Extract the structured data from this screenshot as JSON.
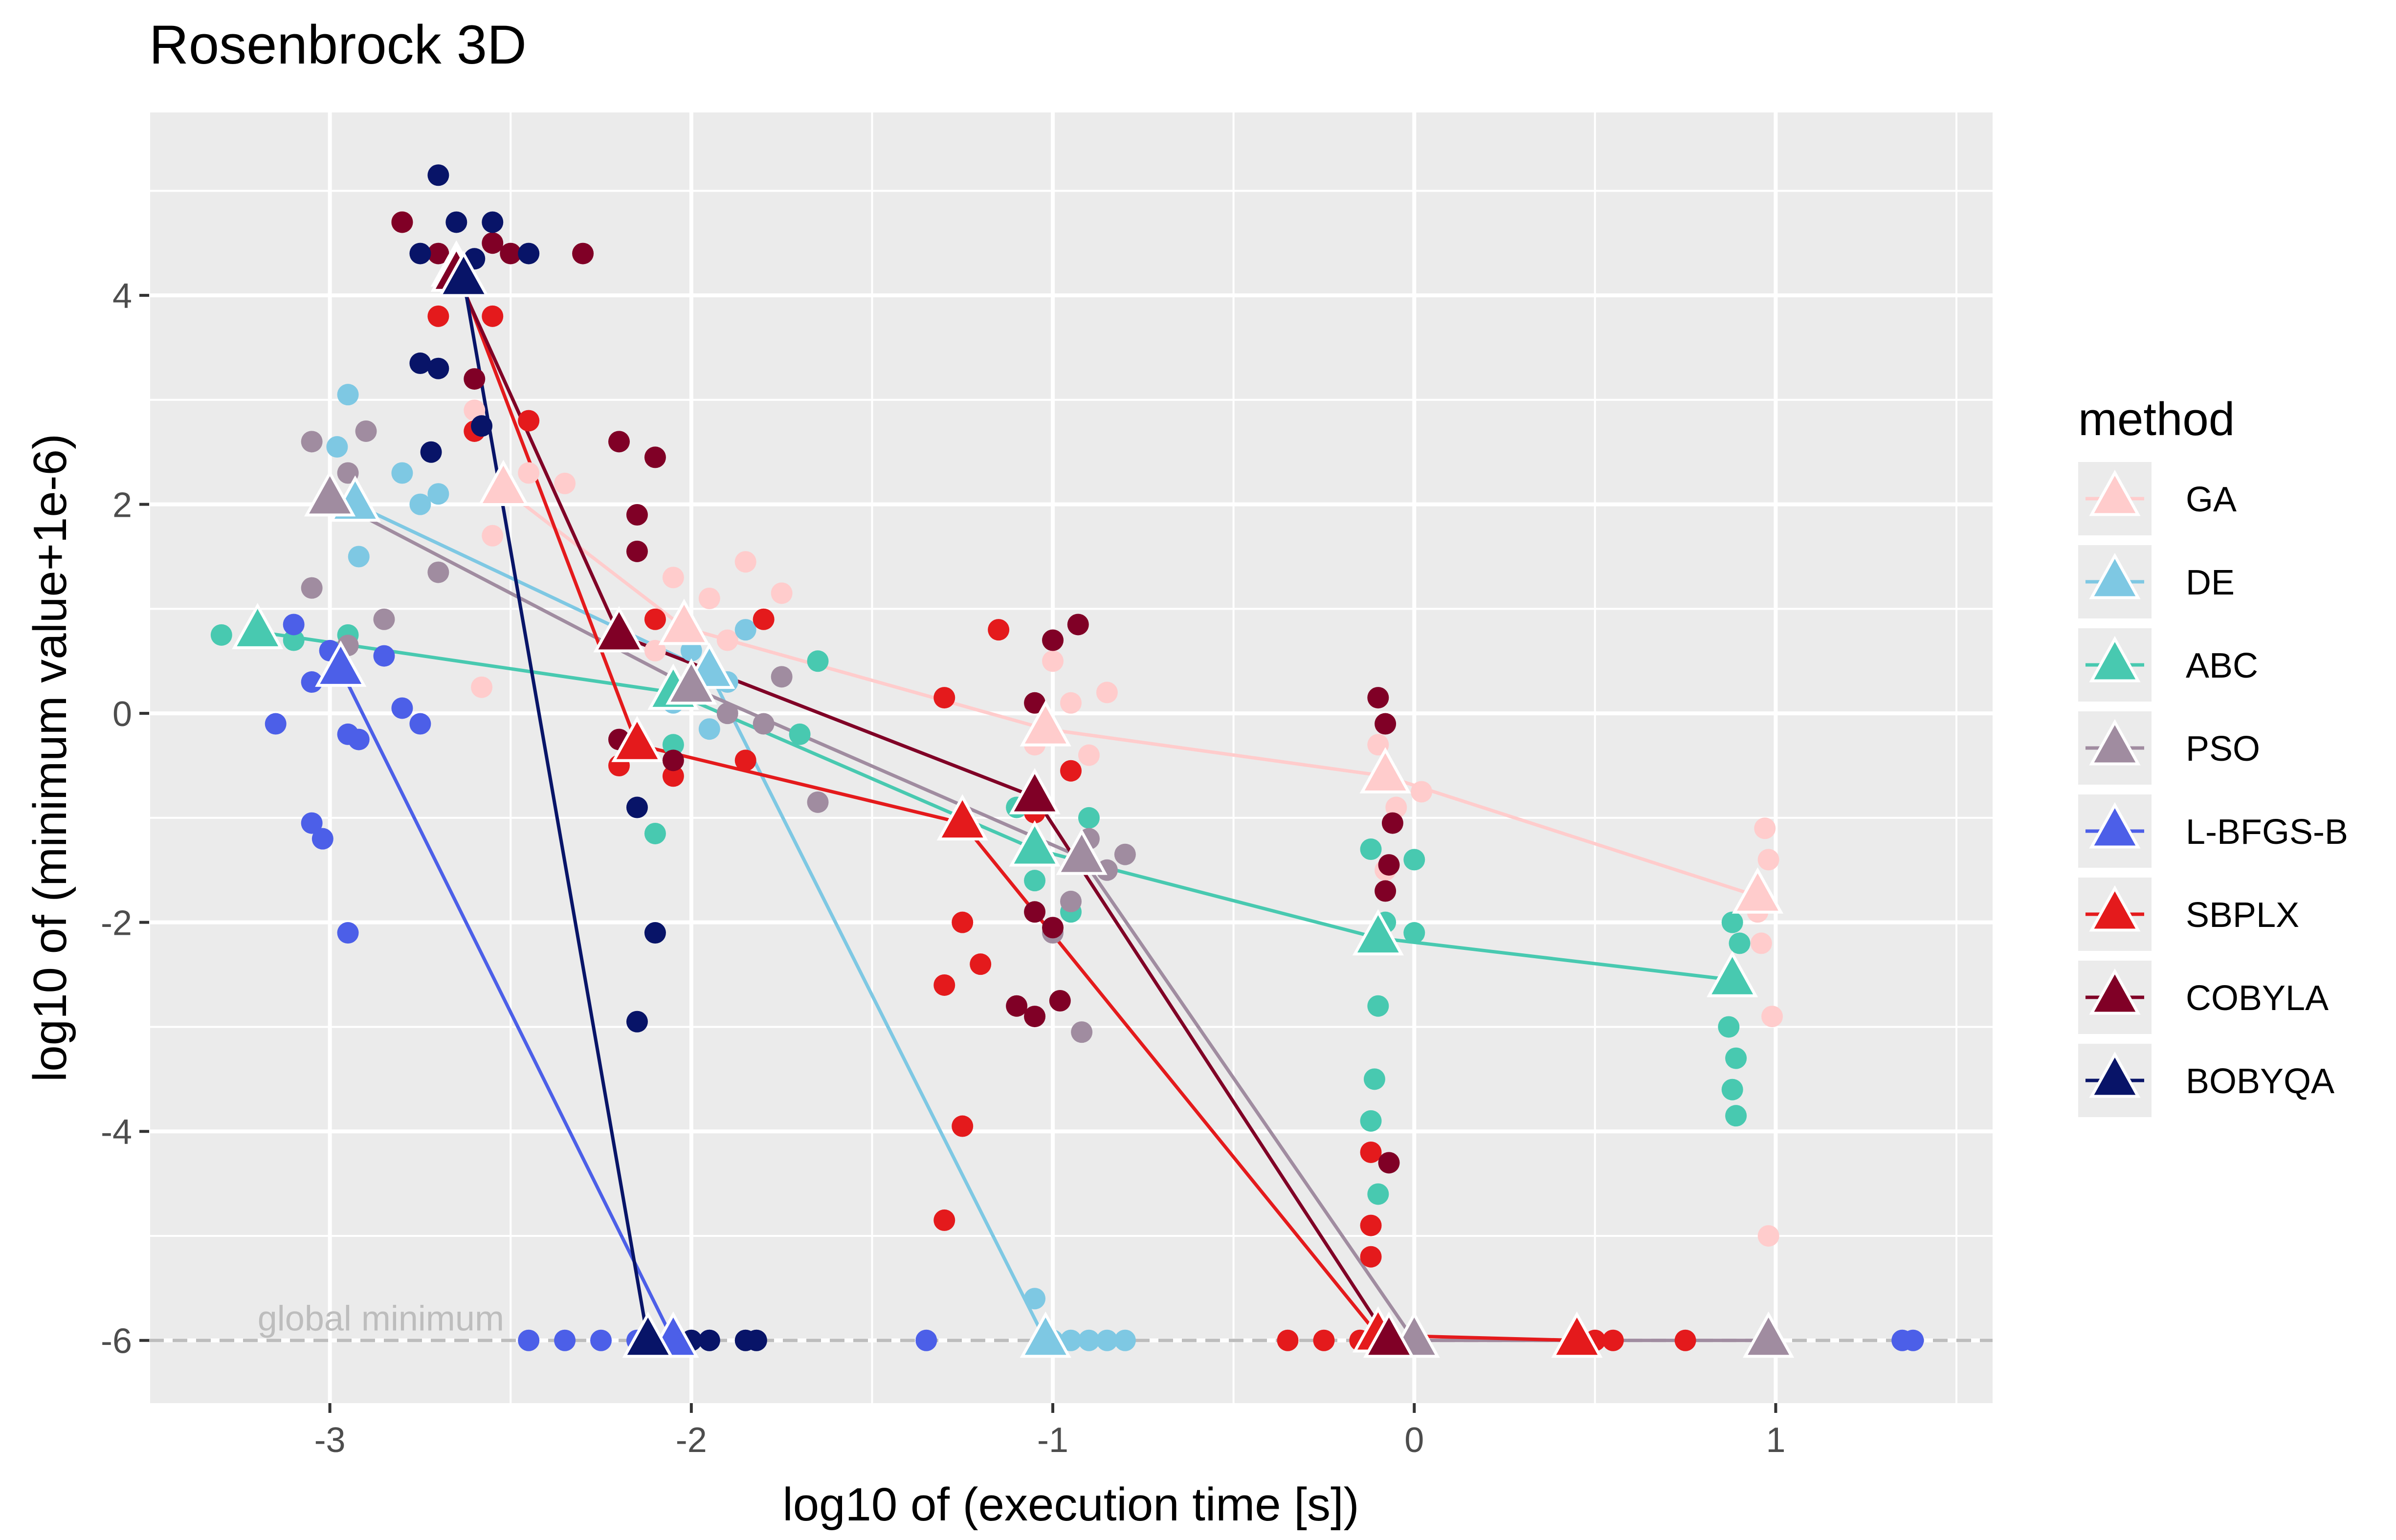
{
  "chart_data": {
    "type": "scatter",
    "title": "Rosenbrock 3D",
    "xlabel": "log10 of (execution time [s])",
    "ylabel": "log10 of (minimum value+1e-6)",
    "xlim": [
      -3.5,
      1.6
    ],
    "ylim": [
      -6.6,
      5.75
    ],
    "x_ticks": [
      -3,
      -2,
      -1,
      0,
      1
    ],
    "y_ticks": [
      -6,
      -4,
      -2,
      0,
      2,
      4
    ],
    "grid": true,
    "legend_title": "method",
    "legend_position": "right",
    "annotation": {
      "text": "global minimum",
      "y": -6,
      "color": "#bdbdbd"
    },
    "reference_line": {
      "y": -6,
      "style": "dashed"
    },
    "series": [
      {
        "name": "GA",
        "color": "#FFCCCC",
        "mean_points": [
          [
            -2.52,
            2.15
          ],
          [
            -2.02,
            0.82
          ],
          [
            -1.02,
            -0.15
          ],
          [
            -0.08,
            -0.6
          ],
          [
            0.95,
            -1.75
          ]
        ],
        "points": [
          [
            -2.6,
            2.9
          ],
          [
            -2.55,
            1.7
          ],
          [
            -2.45,
            2.3
          ],
          [
            -2.35,
            2.2
          ],
          [
            -2.58,
            0.25
          ],
          [
            -2.05,
            1.3
          ],
          [
            -1.95,
            1.1
          ],
          [
            -1.85,
            1.45
          ],
          [
            -2.1,
            0.6
          ],
          [
            -1.9,
            0.7
          ],
          [
            -1.75,
            1.15
          ],
          [
            -1.0,
            0.5
          ],
          [
            -0.95,
            0.1
          ],
          [
            -1.05,
            -0.3
          ],
          [
            -0.85,
            0.2
          ],
          [
            -0.9,
            -0.4
          ],
          [
            -0.1,
            -0.3
          ],
          [
            -0.05,
            -0.9
          ],
          [
            0.02,
            -0.75
          ],
          [
            -0.08,
            -1.5
          ],
          [
            0.97,
            -1.1
          ],
          [
            0.98,
            -1.4
          ],
          [
            0.96,
            -2.2
          ],
          [
            0.99,
            -2.9
          ],
          [
            0.98,
            -5.0
          ],
          [
            0.95,
            -1.9
          ]
        ]
      },
      {
        "name": "DE",
        "color": "#7EC8E3",
        "mean_points": [
          [
            -2.93,
            2.0
          ],
          [
            -1.95,
            0.4
          ],
          [
            -1.02,
            -6.0
          ]
        ],
        "points": [
          [
            -2.95,
            3.05
          ],
          [
            -2.98,
            2.55
          ],
          [
            -2.92,
            1.5
          ],
          [
            -2.8,
            2.3
          ],
          [
            -2.75,
            2.0
          ],
          [
            -2.7,
            2.1
          ],
          [
            -2.0,
            0.6
          ],
          [
            -1.9,
            0.3
          ],
          [
            -1.95,
            -0.15
          ],
          [
            -1.85,
            0.8
          ],
          [
            -2.05,
            0.1
          ],
          [
            -1.05,
            -5.6
          ],
          [
            -1.0,
            -6.0
          ],
          [
            -0.95,
            -6.0
          ],
          [
            -0.9,
            -6.0
          ],
          [
            -0.85,
            -6.0
          ],
          [
            -0.8,
            -6.0
          ]
        ]
      },
      {
        "name": "ABC",
        "color": "#48C9B0",
        "mean_points": [
          [
            -3.2,
            0.78
          ],
          [
            -2.05,
            0.2
          ],
          [
            -1.05,
            -1.3
          ],
          [
            -0.1,
            -2.15
          ],
          [
            0.88,
            -2.55
          ]
        ],
        "points": [
          [
            -3.3,
            0.75
          ],
          [
            -3.1,
            0.7
          ],
          [
            -2.95,
            0.75
          ],
          [
            -2.05,
            -0.3
          ],
          [
            -2.1,
            -1.15
          ],
          [
            -1.7,
            -0.2
          ],
          [
            -1.65,
            0.5
          ],
          [
            -1.1,
            -0.9
          ],
          [
            -1.05,
            -1.6
          ],
          [
            -0.95,
            -1.9
          ],
          [
            -0.9,
            -1.0
          ],
          [
            -0.12,
            -1.3
          ],
          [
            -0.1,
            -2.8
          ],
          [
            -0.11,
            -3.5
          ],
          [
            -0.12,
            -3.9
          ],
          [
            -0.1,
            -4.6
          ],
          [
            -0.08,
            -2.0
          ],
          [
            0.0,
            -1.4
          ],
          [
            0.0,
            -2.1
          ],
          [
            0.88,
            -2.0
          ],
          [
            0.87,
            -3.0
          ],
          [
            0.89,
            -3.3
          ],
          [
            0.88,
            -3.6
          ],
          [
            0.89,
            -3.85
          ],
          [
            0.9,
            -2.2
          ]
        ]
      },
      {
        "name": "PSO",
        "color": "#A08CA0",
        "mean_points": [
          [
            -3.0,
            2.05
          ],
          [
            -2.0,
            0.25
          ],
          [
            -0.92,
            -1.38
          ],
          [
            0.0,
            -6.0
          ],
          [
            0.98,
            -6.0
          ]
        ],
        "points": [
          [
            -3.05,
            2.6
          ],
          [
            -3.05,
            1.2
          ],
          [
            -2.95,
            2.3
          ],
          [
            -2.9,
            2.7
          ],
          [
            -2.85,
            0.9
          ],
          [
            -2.95,
            0.65
          ],
          [
            -2.7,
            1.35
          ],
          [
            -1.9,
            0.0
          ],
          [
            -1.8,
            -0.1
          ],
          [
            -1.75,
            0.35
          ],
          [
            -1.65,
            -0.85
          ],
          [
            -0.95,
            -1.8
          ],
          [
            -0.9,
            -1.2
          ],
          [
            -0.85,
            -1.5
          ],
          [
            -0.8,
            -1.35
          ],
          [
            -0.92,
            -3.05
          ],
          [
            -1.0,
            -2.1
          ],
          [
            0.0,
            -6.0
          ]
        ]
      },
      {
        "name": "L-BFGS-B",
        "color": "#4C5FE8",
        "mean_points": [
          [
            -2.97,
            0.42
          ],
          [
            -2.05,
            -6.0
          ]
        ],
        "points": [
          [
            -3.1,
            0.85
          ],
          [
            -3.05,
            0.3
          ],
          [
            -2.95,
            -0.2
          ],
          [
            -2.92,
            -0.25
          ],
          [
            -3.0,
            0.6
          ],
          [
            -3.05,
            -1.05
          ],
          [
            -3.02,
            -1.2
          ],
          [
            -2.95,
            -2.1
          ],
          [
            -2.85,
            0.55
          ],
          [
            -2.8,
            0.05
          ],
          [
            -2.75,
            -0.1
          ],
          [
            -3.15,
            -0.1
          ],
          [
            -2.45,
            -6.0
          ],
          [
            -2.35,
            -6.0
          ],
          [
            -2.25,
            -6.0
          ],
          [
            -2.15,
            -6.0
          ],
          [
            -1.95,
            -6.0
          ],
          [
            -1.35,
            -6.0
          ],
          [
            1.35,
            -6.0
          ],
          [
            1.38,
            -6.0
          ]
        ]
      },
      {
        "name": "SBPLX",
        "color": "#E41A1C",
        "mean_points": [
          [
            -2.65,
            4.25
          ],
          [
            -2.15,
            -0.3
          ],
          [
            -1.25,
            -1.05
          ],
          [
            -0.1,
            -5.95
          ],
          [
            0.45,
            -6.0
          ]
        ],
        "points": [
          [
            -2.8,
            4.7
          ],
          [
            -2.7,
            3.8
          ],
          [
            -2.6,
            2.7
          ],
          [
            -2.55,
            3.8
          ],
          [
            -2.45,
            2.8
          ],
          [
            -2.2,
            -0.5
          ],
          [
            -2.1,
            0.9
          ],
          [
            -2.05,
            -0.6
          ],
          [
            -1.85,
            -0.45
          ],
          [
            -1.8,
            0.9
          ],
          [
            -1.3,
            0.15
          ],
          [
            -1.25,
            -2.0
          ],
          [
            -1.2,
            -2.4
          ],
          [
            -1.25,
            -3.95
          ],
          [
            -1.3,
            -2.6
          ],
          [
            -1.15,
            0.8
          ],
          [
            -1.05,
            -0.95
          ],
          [
            -0.95,
            -0.55
          ],
          [
            -1.3,
            -4.85
          ],
          [
            -0.35,
            -6.0
          ],
          [
            -0.25,
            -6.0
          ],
          [
            -0.15,
            -6.0
          ],
          [
            -0.12,
            -4.9
          ],
          [
            -0.12,
            -4.2
          ],
          [
            -0.12,
            -5.2
          ],
          [
            0.5,
            -6.0
          ],
          [
            0.55,
            -6.0
          ],
          [
            0.75,
            -6.0
          ]
        ]
      },
      {
        "name": "COBYLA",
        "color": "#800026",
        "mean_points": [
          [
            -2.65,
            4.2
          ],
          [
            -2.2,
            0.75
          ],
          [
            -1.05,
            -0.8
          ],
          [
            -0.07,
            -6.0
          ]
        ],
        "points": [
          [
            -2.8,
            4.7
          ],
          [
            -2.7,
            4.4
          ],
          [
            -2.55,
            4.5
          ],
          [
            -2.6,
            3.2
          ],
          [
            -2.5,
            4.4
          ],
          [
            -2.3,
            4.4
          ],
          [
            -2.2,
            2.6
          ],
          [
            -2.15,
            1.9
          ],
          [
            -2.15,
            1.55
          ],
          [
            -2.1,
            2.45
          ],
          [
            -2.2,
            -0.25
          ],
          [
            -2.05,
            -0.45
          ],
          [
            -1.1,
            -2.8
          ],
          [
            -1.05,
            -2.9
          ],
          [
            -0.98,
            -2.75
          ],
          [
            -1.0,
            0.7
          ],
          [
            -1.05,
            0.1
          ],
          [
            -0.93,
            0.85
          ],
          [
            -1.05,
            -1.9
          ],
          [
            -1.0,
            -2.05
          ],
          [
            -0.1,
            0.15
          ],
          [
            -0.08,
            -0.1
          ],
          [
            -0.07,
            -1.45
          ],
          [
            -0.06,
            -1.05
          ],
          [
            -0.08,
            -1.7
          ],
          [
            -0.07,
            -4.3
          ]
        ]
      },
      {
        "name": "BOBYQA",
        "color": "#081468",
        "mean_points": [
          [
            -2.63,
            4.15
          ],
          [
            -2.12,
            -6.0
          ]
        ],
        "points": [
          [
            -2.7,
            5.15
          ],
          [
            -2.65,
            4.7
          ],
          [
            -2.6,
            4.35
          ],
          [
            -2.55,
            4.7
          ],
          [
            -2.45,
            4.4
          ],
          [
            -2.75,
            4.4
          ],
          [
            -2.75,
            3.35
          ],
          [
            -2.7,
            3.3
          ],
          [
            -2.72,
            2.5
          ],
          [
            -2.58,
            2.75
          ],
          [
            -2.15,
            -0.9
          ],
          [
            -2.1,
            -2.1
          ],
          [
            -2.15,
            -2.95
          ],
          [
            -2.0,
            -6.0
          ],
          [
            -1.95,
            -6.0
          ],
          [
            -1.85,
            -6.0
          ],
          [
            -1.82,
            -6.0
          ]
        ]
      }
    ]
  }
}
